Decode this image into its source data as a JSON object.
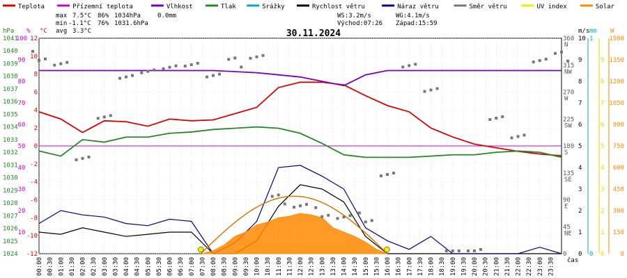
{
  "chart_data": {
    "type": "line",
    "title": "30.11.2024",
    "x_label": "čas",
    "x_ticks": [
      "00:00",
      "00:30",
      "01:00",
      "01:30",
      "02:00",
      "02:30",
      "03:00",
      "03:30",
      "04:00",
      "04:30",
      "05:00",
      "05:30",
      "06:00",
      "06:30",
      "07:00",
      "07:30",
      "08:00",
      "08:30",
      "09:00",
      "09:30",
      "10:00",
      "10:30",
      "11:00",
      "11:30",
      "12:00",
      "12:30",
      "13:00",
      "13:30",
      "14:00",
      "14:30",
      "15:00",
      "15:30",
      "16:00",
      "16:30",
      "17:00",
      "17:30",
      "18:00",
      "18:30",
      "19:00",
      "19:30",
      "20:00",
      "20:30",
      "21:00",
      "21:30",
      "22:00",
      "22:30",
      "23:00",
      "23:30"
    ],
    "legend": [
      {
        "label": "Teplota",
        "color": "#dd0000"
      },
      {
        "label": "Přízemní teplota",
        "color": "#cc00cc"
      },
      {
        "label": "Vlhkost",
        "color": "#7700bb"
      },
      {
        "label": "Tlak",
        "color": "#228822"
      },
      {
        "label": "Srážky",
        "color": "#00aacc"
      },
      {
        "label": "Rychlost větru",
        "color": "#000000"
      },
      {
        "label": "Náraz větru",
        "color": "#00008b"
      },
      {
        "label": "Směr větru",
        "color": "#777777"
      },
      {
        "label": "UV index",
        "color": "#eeee00"
      },
      {
        "label": "Solar",
        "color": "#ff8800"
      }
    ],
    "stats": {
      "max_label": "max",
      "max_temp": "7.5°C",
      "max_hum": "86%",
      "max_press": "1034hPa",
      "rain": "0.0mm",
      "min_label": "min",
      "min_temp": "-1.1°C",
      "min_hum": "76%",
      "min_press": "1031.6hPa",
      "avg_label": "avg",
      "avg_temp": "3.3°C",
      "ws": "WS:3.2m/s",
      "wg": "WG:4.1m/s",
      "sunrise": "Východ:07:26",
      "sunset": "Západ:15:59"
    },
    "axes": {
      "pressure": {
        "unit": "hPa",
        "color": "#228822",
        "ticks": [
          "1041",
          "1040",
          "1039",
          "1038",
          "1037",
          "1036",
          "1035",
          "1034",
          "1033",
          "1032",
          "1031",
          "1030",
          "1029",
          "1028",
          "1027",
          "1026",
          "1025",
          "1024"
        ]
      },
      "humidity": {
        "unit": "%",
        "color": "#cc00cc",
        "ticks": [
          "100",
          "90",
          "80",
          "70",
          "60",
          "50",
          "40",
          "30",
          "20",
          "10"
        ]
      },
      "temperature": {
        "unit": "°C",
        "color": "#dd0000",
        "ticks": [
          "12",
          "10",
          "8",
          "6",
          "4",
          "2",
          "0",
          "-2",
          "-4",
          "-6",
          "-8",
          "-10",
          "-12"
        ]
      },
      "direction": {
        "ticks": [
          "360",
          "315",
          "270",
          "225",
          "180",
          "135",
          "90",
          "45",
          "0"
        ],
        "labels": [
          "N",
          "NW",
          "W",
          "SW",
          "S",
          "SE",
          "E",
          "NE"
        ]
      },
      "wind": {
        "unit": "m/s",
        "color": "#000000",
        "ticks": [
          "10",
          "9",
          "8",
          "7",
          "6",
          "5",
          "4",
          "3",
          "2",
          "1",
          "0"
        ]
      },
      "rain": {
        "unit": "mm",
        "color": "#00aacc",
        "ticks": [
          "1",
          "0"
        ]
      },
      "solar": {
        "unit": "W",
        "color": "#ff8800",
        "ticks": [
          "1500",
          "1350",
          "1200",
          "1050",
          "900",
          "750",
          "600",
          "450",
          "300",
          "150",
          "0"
        ]
      },
      "uv": {
        "ticks": [
          "9",
          "8",
          "7",
          "6",
          "5",
          "4",
          "3",
          "2",
          "1",
          "0"
        ]
      }
    },
    "temp_range": [
      -12,
      12
    ],
    "hum_range": [
      0,
      100
    ],
    "press_range": [
      1024,
      1041
    ],
    "wind_range": [
      0,
      10
    ],
    "solar_range": [
      0,
      1500
    ],
    "dir_range": [
      0,
      360
    ],
    "series": [
      {
        "name": "Teplota",
        "unit": "°C",
        "x": [
          0,
          1,
          2,
          3,
          4,
          5,
          6,
          7,
          8,
          9,
          10,
          11,
          12,
          13,
          14,
          15,
          16,
          17,
          18,
          19,
          20,
          21,
          22,
          23,
          24
        ],
        "values": [
          3.8,
          3.0,
          1.5,
          2.8,
          2.7,
          2.2,
          3.0,
          2.8,
          2.9,
          3.6,
          4.3,
          6.5,
          7.1,
          7.1,
          6.8,
          5.6,
          4.5,
          3.8,
          2.0,
          1.0,
          0.2,
          -0.2,
          -0.6,
          -0.9,
          -1.1
        ]
      },
      {
        "name": "Vlhkost",
        "unit": "%",
        "x": [
          0,
          2,
          4,
          6,
          8,
          10,
          11,
          12,
          13,
          14,
          15,
          16,
          18,
          20,
          22,
          24
        ],
        "values": [
          85,
          85,
          85,
          85,
          85,
          84,
          83,
          82,
          80,
          78,
          83,
          85,
          85,
          85,
          85,
          85
        ]
      },
      {
        "name": "Tlak",
        "unit": "hPa",
        "x": [
          0,
          1,
          2,
          3,
          4,
          5,
          6,
          7,
          8,
          9,
          10,
          11,
          12,
          13,
          14,
          15,
          16,
          17,
          18,
          19,
          20,
          21,
          22,
          23,
          24
        ],
        "values": [
          1032.1,
          1031.7,
          1033.0,
          1032.8,
          1033.2,
          1033.2,
          1033.5,
          1033.6,
          1033.8,
          1033.9,
          1034.0,
          1033.9,
          1033.5,
          1032.7,
          1031.8,
          1031.6,
          1031.6,
          1031.6,
          1031.7,
          1031.8,
          1031.8,
          1032.0,
          1032.1,
          1032.0,
          1031.6
        ]
      },
      {
        "name": "Rychlost větru",
        "unit": "m/s",
        "x": [
          0,
          1,
          2,
          3,
          4,
          5,
          6,
          7,
          8,
          9,
          10,
          11,
          12,
          13,
          14,
          15,
          16,
          17,
          18,
          19,
          20,
          21,
          22,
          23,
          24
        ],
        "values": [
          1.0,
          0.9,
          1.2,
          1.0,
          0.8,
          0.9,
          1.0,
          1.0,
          0.0,
          0.0,
          0.6,
          2.2,
          3.2,
          3.0,
          2.4,
          0.8,
          0.0,
          0.0,
          0.0,
          0.0,
          0.0,
          0.0,
          0.0,
          0.0,
          0.0
        ]
      },
      {
        "name": "Náraz větru",
        "unit": "m/s",
        "x": [
          0,
          1,
          2,
          3,
          4,
          5,
          6,
          7,
          8,
          9,
          10,
          11,
          12,
          13,
          14,
          15,
          16,
          17,
          18,
          19,
          20,
          21,
          22,
          23,
          24
        ],
        "values": [
          1.4,
          2.0,
          1.8,
          1.7,
          1.4,
          1.3,
          1.6,
          1.5,
          0.0,
          0.5,
          1.5,
          4.0,
          4.1,
          3.6,
          3.0,
          1.2,
          0.6,
          0.2,
          0.8,
          0.0,
          0.0,
          0.0,
          0.0,
          0.3,
          0.0
        ]
      },
      {
        "name": "Solar",
        "unit": "W",
        "x": [
          7.5,
          8,
          8.5,
          9,
          9.5,
          10,
          10.5,
          11,
          11.5,
          12,
          12.5,
          13,
          13.5,
          14,
          14.5,
          15,
          15.5,
          16
        ],
        "values": [
          0,
          20,
          60,
          120,
          150,
          200,
          220,
          250,
          260,
          280,
          270,
          250,
          180,
          150,
          120,
          80,
          30,
          0
        ]
      },
      {
        "name": "Směr větru",
        "unit": "°",
        "x": [
          0,
          1,
          2,
          3,
          4,
          5,
          6,
          7,
          8,
          9,
          10,
          11,
          12,
          13,
          14,
          15,
          16,
          17,
          18,
          19,
          20,
          21,
          22,
          23,
          24
        ],
        "values": [
          330,
          315,
          165,
          225,
          300,
          300,
          315,
          310,
          300,
          320,
          330,
          90,
          80,
          70,
          60,
          60,
          130,
          320,
          270,
          0,
          0,
          230,
          190,
          325,
          330
        ]
      }
    ]
  }
}
